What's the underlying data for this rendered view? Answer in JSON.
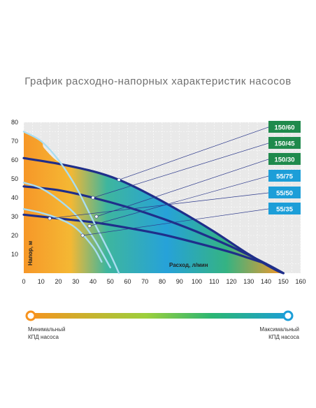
{
  "title": "График расходно-напорных характеристик насосов",
  "legend": {
    "min_label_line1": "Минимальный",
    "min_label_line2": "КПД насоса",
    "max_label_line1": "Максимальный",
    "max_label_line2": "КПД насоса",
    "colors": [
      "#f7931e",
      "#9ccf3c",
      "#2bb673",
      "#1c9ed8"
    ]
  },
  "chart_data": {
    "type": "line",
    "xlabel": "Расход, л/мин",
    "ylabel": "Напор, м",
    "xlim": [
      0,
      160
    ],
    "ylim": [
      0,
      80
    ],
    "xticks": [
      0,
      10,
      20,
      30,
      40,
      50,
      60,
      70,
      80,
      90,
      100,
      110,
      120,
      130,
      140,
      150,
      160
    ],
    "yticks": [
      10,
      20,
      30,
      40,
      50,
      60,
      70,
      80
    ],
    "grid": true,
    "series": [
      {
        "name": "150/60",
        "color": "#1f8a4c",
        "x": [
          0,
          20,
          40,
          55,
          70,
          90,
          110,
          130,
          145,
          150
        ],
        "y": [
          61,
          58,
          54,
          49.5,
          43,
          33,
          22,
          10,
          2,
          0
        ]
      },
      {
        "name": "150/45",
        "color": "#1f8a4c",
        "x": [
          0,
          20,
          40,
          60,
          80,
          100,
          120,
          140,
          150
        ],
        "y": [
          46,
          44,
          40,
          35,
          29,
          22,
          14,
          5,
          0
        ]
      },
      {
        "name": "150/30",
        "color": "#1f8a4c",
        "x": [
          0,
          20,
          40,
          60,
          80,
          100,
          120,
          130,
          140
        ],
        "y": [
          31,
          29,
          27,
          24,
          20.5,
          16,
          11,
          8,
          5
        ]
      },
      {
        "name": "55/75",
        "color": "#1c9ed8",
        "x": [
          0,
          10,
          20,
          30,
          40,
          50,
          55
        ],
        "y": [
          75,
          70,
          60,
          46,
          28,
          10,
          0
        ]
      },
      {
        "name": "55/50",
        "color": "#1c9ed8",
        "x": [
          0,
          10,
          20,
          30,
          40,
          50
        ],
        "y": [
          48,
          45,
          39,
          31,
          19,
          3
        ]
      },
      {
        "name": "55/35",
        "color": "#1c9ed8",
        "x": [
          0,
          10,
          20,
          30,
          40,
          45
        ],
        "y": [
          34,
          32,
          29,
          24,
          14,
          6
        ]
      }
    ],
    "markers": [
      {
        "x": 55,
        "y": 49.5
      },
      {
        "x": 40,
        "y": 40
      },
      {
        "x": 42,
        "y": 30
      },
      {
        "x": 38,
        "y": 25
      },
      {
        "x": 15,
        "y": 29
      },
      {
        "x": 34,
        "y": 20
      }
    ]
  }
}
